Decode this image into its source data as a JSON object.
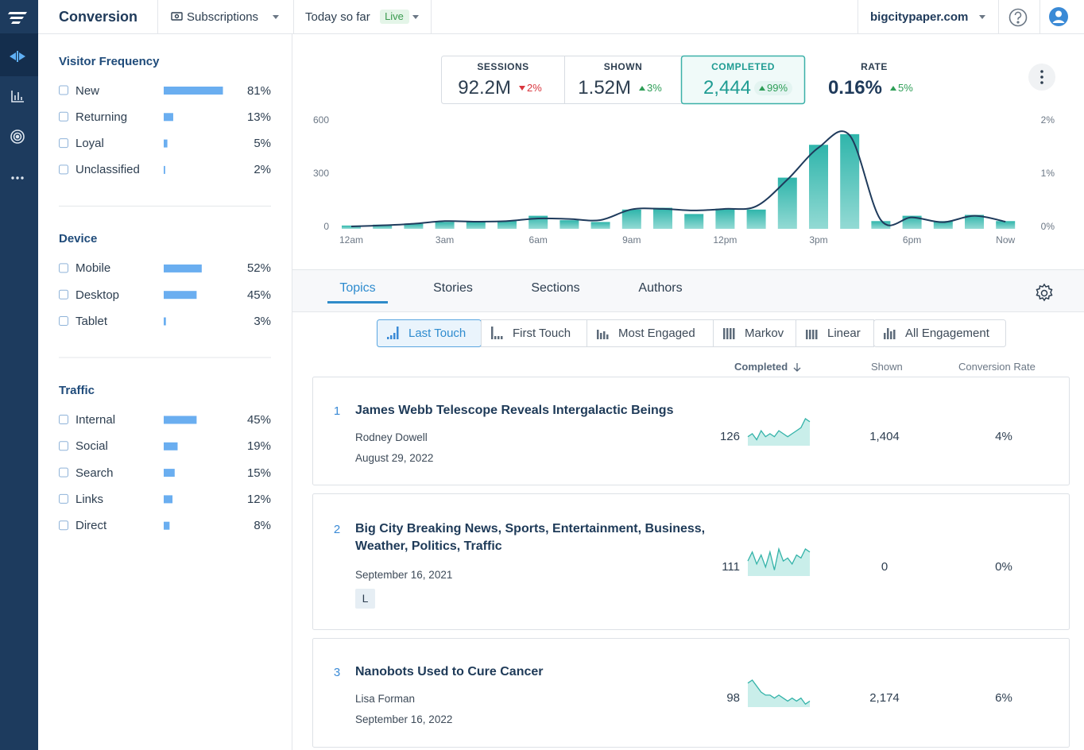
{
  "header": {
    "title": "Conversion",
    "product": "Subscriptions",
    "period": "Today so far",
    "live": "Live",
    "site": "bigcitypaper.com"
  },
  "filters": [
    {
      "title": "Visitor Frequency",
      "items": [
        {
          "label": "New",
          "value": 81,
          "value_label": "81%"
        },
        {
          "label": "Returning",
          "value": 13,
          "value_label": "13%"
        },
        {
          "label": "Loyal",
          "value": 5,
          "value_label": "5%"
        },
        {
          "label": "Unclassified",
          "value": 2,
          "value_label": "2%"
        }
      ]
    },
    {
      "title": "Device",
      "items": [
        {
          "label": "Mobile",
          "value": 52,
          "value_label": "52%"
        },
        {
          "label": "Desktop",
          "value": 45,
          "value_label": "45%"
        },
        {
          "label": "Tablet",
          "value": 3,
          "value_label": "3%"
        }
      ]
    },
    {
      "title": "Traffic",
      "items": [
        {
          "label": "Internal",
          "value": 45,
          "value_label": "45%"
        },
        {
          "label": "Social",
          "value": 19,
          "value_label": "19%"
        },
        {
          "label": "Search",
          "value": 15,
          "value_label": "15%"
        },
        {
          "label": "Links",
          "value": 12,
          "value_label": "12%"
        },
        {
          "label": "Direct",
          "value": 8,
          "value_label": "8%"
        }
      ]
    }
  ],
  "metrics": [
    {
      "label": "SESSIONS",
      "value": "92.2M",
      "change": "2%",
      "direction": "down"
    },
    {
      "label": "SHOWN",
      "value": "1.52M",
      "change": "3%",
      "direction": "up"
    },
    {
      "label": "COMPLETED",
      "value": "2,444",
      "change": "99%",
      "direction": "up",
      "selected": true
    },
    {
      "label": "RATE",
      "value": "0.16%",
      "change": "5%",
      "direction": "up"
    }
  ],
  "chart_data": {
    "type": "bar",
    "categories": [
      "12am",
      null,
      null,
      "3am",
      null,
      null,
      "6am",
      null,
      null,
      "9am",
      null,
      null,
      "12pm",
      null,
      null,
      "3pm",
      null,
      null,
      "6pm",
      null,
      null,
      "Now"
    ],
    "series": [
      {
        "type": "bar",
        "color": "#2fb5ab",
        "values": [
          5,
          10,
          15,
          25,
          25,
          30,
          60,
          35,
          25,
          95,
          105,
          70,
          100,
          95,
          275,
          460,
          520,
          30,
          60,
          30,
          65,
          30
        ]
      },
      {
        "type": "line",
        "axis": "y2",
        "color": "#1f3b5c",
        "values": [
          0,
          0.02,
          0.05,
          0.1,
          0.09,
          0.1,
          0.15,
          0.14,
          0.12,
          0.32,
          0.33,
          0.3,
          0.33,
          0.38,
          0.88,
          1.48,
          1.71,
          0.12,
          0.17,
          0.08,
          0.2,
          0.09
        ]
      }
    ],
    "ylim": [
      0,
      600
    ],
    "yticks": [
      0,
      300,
      600
    ],
    "y2lim": [
      0,
      2
    ],
    "y2ticks": [
      {
        "value": 0,
        "label": "0%"
      },
      {
        "value": 1,
        "label": "1%"
      },
      {
        "value": 2,
        "label": "2%"
      }
    ],
    "grid": false
  },
  "tabs": [
    "Topics",
    "Stories",
    "Sections",
    "Authors"
  ],
  "active_tab": 0,
  "attribution": [
    "Last Touch",
    "First Touch",
    "Most Engaged",
    "Markov",
    "Linear",
    "All Engagement"
  ],
  "active_attribution": 0,
  "columns": {
    "completed": "Completed",
    "shown": "Shown",
    "rate": "Conversion Rate"
  },
  "rows": [
    {
      "rank": 1,
      "title": "James Webb Telescope Reveals Intergalactic Beings",
      "author": "Rodney Dowell",
      "date": "August 29, 2022",
      "completed": 126,
      "trend": [
        3,
        4,
        2,
        5,
        3,
        4,
        3,
        5,
        4,
        3,
        4,
        5,
        6,
        9,
        8
      ],
      "shown": "1,404",
      "rate": "4%"
    },
    {
      "rank": 2,
      "title": "Big City Breaking News, Sports, Entertainment, Business, Weather, Politics, Traffic",
      "date": "September 16, 2021",
      "tag": "L",
      "completed": 111,
      "trend": [
        5,
        8,
        4,
        7,
        3,
        8,
        2,
        9,
        5,
        6,
        4,
        7,
        6,
        9,
        8
      ],
      "shown": 0,
      "rate": "0%"
    },
    {
      "rank": 3,
      "title": "Nanobots Used to Cure Cancer",
      "author": "Lisa Forman",
      "date": "September 16, 2022",
      "completed": 98,
      "trend": [
        8,
        9,
        7,
        5,
        4,
        4,
        3,
        4,
        3,
        2,
        3,
        2,
        3,
        1,
        2
      ],
      "shown": "2,174",
      "rate": "6%"
    }
  ]
}
